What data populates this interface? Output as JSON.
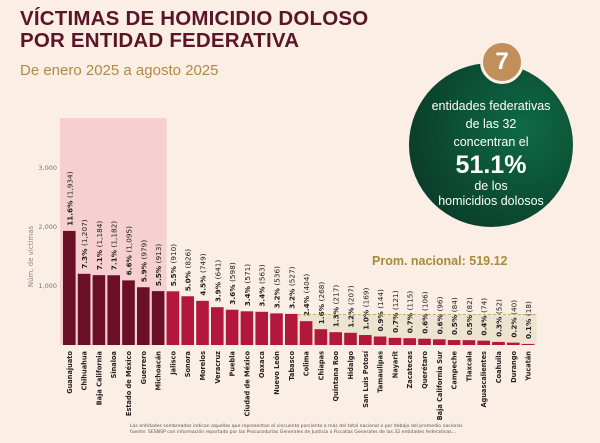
{
  "header": {
    "title_line1": "VÍCTIMAS DE HOMICIDIO DOLOSO",
    "title_line2": "POR ENTIDAD FEDERATIVA",
    "subtitle": "De enero 2025 a agosto 2025"
  },
  "callout": {
    "number": "7",
    "line1": "entidades federativas",
    "line2": "de las 32",
    "line3": "concentran el",
    "percent": "51.1%",
    "line4": "de los",
    "line5": "homicidios dolosos"
  },
  "average_label": "Prom. nacional: 519.12",
  "footnote": {
    "line1": "Las entidades sombreadas indican aquellas que representan el cincuenta porciento o más del total nacional o por debajo del promedio nacional.",
    "line2": "fuente: SESNSP con información reportada por las Procuradurías Generales de Justicia o Fiscalías Generales de las 32 entidades federativas..."
  },
  "colors": {
    "top_group": "#6a0f26",
    "rest": "#b3173c",
    "shade_top": "#f6cfd0",
    "shade_below_avg": "#ede3cf",
    "circle": "#0c4f33",
    "badge": "#c1905a"
  },
  "chart_data": {
    "type": "bar",
    "ylabel": "Núm. de víctimas",
    "ylim": [
      0,
      3000
    ],
    "yticks": [
      "1,000",
      "2,000",
      "3,000"
    ],
    "average": 519.12,
    "categories": [
      "Guanajuato",
      "Chihuahua",
      "Baja California",
      "Sinaloa",
      "Estado de México",
      "Guerrero",
      "Michoacán",
      "Jalisco",
      "Sonora",
      "Morelos",
      "Veracruz",
      "Puebla",
      "Ciudad de México",
      "Oaxaca",
      "Nuevo León",
      "Tabasco",
      "Colima",
      "Chiapas",
      "Quintana Roo",
      "Hidalgo",
      "San Luis Potosí",
      "Tamaulipas",
      "Nayarit",
      "Zacatecas",
      "Querétaro",
      "Baja California Sur",
      "Campeche",
      "Tlaxcala",
      "Aguascalientes",
      "Coahuila",
      "Durango",
      "Yucatán"
    ],
    "values": [
      1934,
      1207,
      1184,
      1182,
      1095,
      979,
      913,
      910,
      826,
      749,
      641,
      598,
      571,
      563,
      536,
      527,
      404,
      268,
      217,
      207,
      169,
      144,
      121,
      115,
      106,
      96,
      84,
      82,
      74,
      52,
      40,
      18
    ],
    "percents": [
      "11.6%",
      "7.3%",
      "7.1%",
      "7.1%",
      "6.6%",
      "5.9%",
      "5.5%",
      "5.5%",
      "5.0%",
      "4.5%",
      "3.9%",
      "3.6%",
      "3.4%",
      "3.4%",
      "3.2%",
      "3.2%",
      "2.4%",
      "1.6%",
      "1.3%",
      "1.2%",
      "1.0%",
      "0.9%",
      "0.7%",
      "0.7%",
      "0.6%",
      "0.6%",
      "0.5%",
      "0.5%",
      "0.4%",
      "0.3%",
      "0.2%",
      "0.1%"
    ],
    "highlighted_count": 7
  }
}
